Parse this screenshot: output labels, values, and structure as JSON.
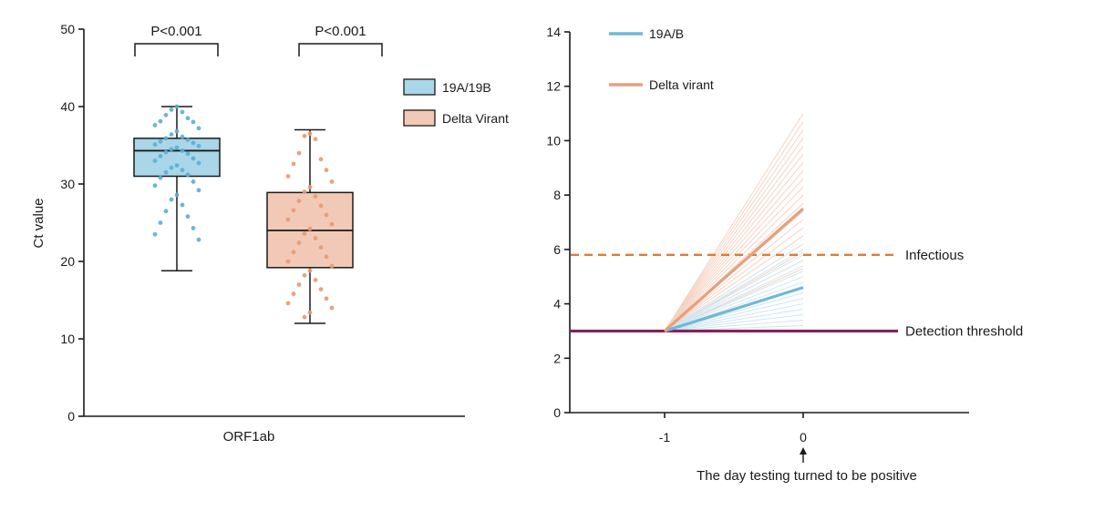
{
  "chart_data": [
    {
      "type": "box",
      "ylabel": "Ct value",
      "xlabel": "ORF1ab",
      "ylim": [
        0,
        50
      ],
      "yticks": [
        0,
        10,
        20,
        30,
        40,
        50
      ],
      "legend_position": "right",
      "series": [
        {
          "name": "19A/19B",
          "color": "#a9d6e8",
          "edge_color": "#1a1a1a",
          "point_color": "#5aaed6",
          "box": {
            "min": 18.8,
            "q1": 31.0,
            "median": 34.3,
            "q3": 35.9,
            "max": 40.0
          },
          "points": [
            40.0,
            39.6,
            39.3,
            38.9,
            38.5,
            38.1,
            38.0,
            37.6,
            37.2,
            36.8,
            36.4,
            36.1,
            35.9,
            35.7,
            35.5,
            35.3,
            35.1,
            34.9,
            34.7,
            34.5,
            34.3,
            34.1,
            33.9,
            33.6,
            33.3,
            33.0,
            32.7,
            32.4,
            32.1,
            31.8,
            31.5,
            31.2,
            30.8,
            30.3,
            29.8,
            29.2,
            28.6,
            28.0,
            27.3,
            26.5,
            25.8,
            25.0,
            24.3,
            23.5,
            22.8
          ]
        },
        {
          "name": "Delta Virant",
          "color": "#f2c9b6",
          "edge_color": "#1a1a1a",
          "point_color": "#e59a72",
          "box": {
            "min": 12.0,
            "q1": 19.2,
            "median": 24.0,
            "q3": 28.9,
            "max": 37.0
          },
          "points": [
            36.5,
            36.2,
            35.8,
            34.0,
            33.2,
            32.6,
            31.8,
            31.0,
            30.3,
            29.6,
            29.0,
            28.4,
            27.8,
            27.2,
            26.6,
            26.0,
            25.4,
            24.8,
            24.2,
            23.6,
            23.0,
            22.4,
            21.8,
            21.2,
            20.6,
            20.0,
            19.4,
            18.8,
            18.2,
            17.6,
            17.0,
            16.4,
            15.8,
            15.2,
            14.6,
            14.0,
            13.4,
            12.8
          ]
        }
      ],
      "annotations": [
        {
          "text": "P<0.001",
          "bracket_from": 0,
          "bracket_to": 1
        },
        {
          "text": "P<0.001",
          "bracket_from": 2,
          "bracket_to": 3
        }
      ]
    },
    {
      "type": "line",
      "ylim": [
        0,
        14
      ],
      "yticks": [
        0,
        2,
        4,
        6,
        8,
        10,
        12,
        14
      ],
      "xlim": [
        -1.6,
        0.7
      ],
      "xticks": [
        -1,
        0
      ],
      "x_note": "The day testing turned to be positive",
      "legend_position": "top-left",
      "series": [
        {
          "name": "19A/B",
          "color": "#6fb8d8",
          "x": [
            -1,
            0
          ],
          "y": [
            3,
            4.6
          ]
        },
        {
          "name": "Delta virant",
          "color": "#e5a07e",
          "x": [
            -1,
            0
          ],
          "y": [
            3,
            7.5
          ]
        }
      ],
      "background_lines": {
        "delta_endpoints": [
          11.0,
          10.7,
          10.4,
          10.1,
          9.8,
          9.5,
          9.2,
          8.9,
          8.6,
          8.3,
          8.0,
          7.7,
          7.4,
          7.1,
          6.8,
          6.5,
          6.2,
          5.9,
          5.6,
          5.3
        ],
        "b19_endpoints": [
          6.2,
          6.0,
          5.8,
          5.6,
          5.4,
          5.2,
          5.0,
          4.8,
          4.6,
          4.4,
          4.2,
          4.0,
          3.8,
          3.6,
          3.4,
          3.2
        ],
        "delta_color": "#f5d3c3",
        "b19_color": "#cfe6f1"
      },
      "reference_lines": [
        {
          "label": "Infectious",
          "y": 5.8,
          "style": "dashed",
          "color": "#e07a3c"
        },
        {
          "label": "Detection threshold",
          "y": 3.0,
          "style": "solid",
          "color": "#8b1f5a"
        }
      ]
    }
  ]
}
